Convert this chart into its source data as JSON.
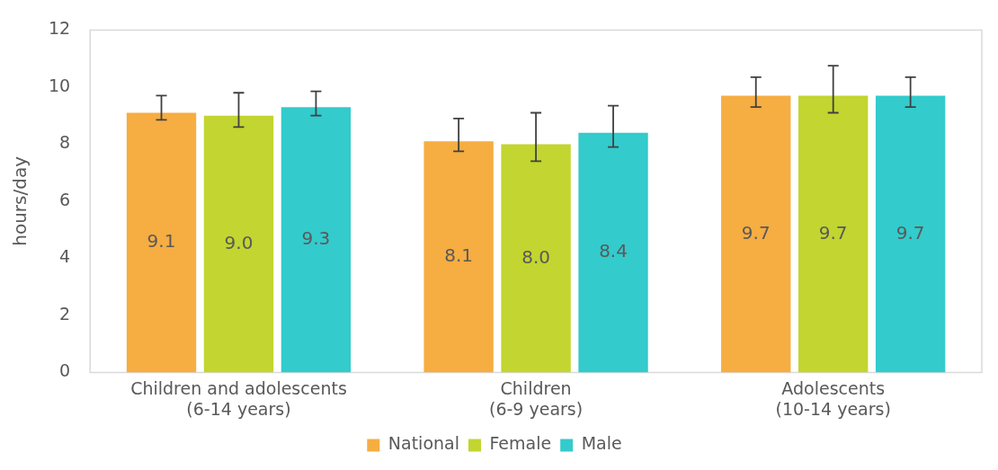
{
  "chart_data": {
    "type": "bar",
    "ylabel": "hours/day",
    "categories": [
      "Children and adolescents\n(6-14 years)",
      "Children\n(6-9 years)",
      "Adolescents\n(10-14 years)"
    ],
    "series": [
      {
        "name": "National",
        "color": "#f6ad42",
        "values": [
          9.1,
          8.1,
          9.7
        ],
        "value_labels": [
          "9.1",
          "8.1",
          "9.7"
        ],
        "errors": [
          [
            8.85,
            9.7
          ],
          [
            7.75,
            8.9
          ],
          [
            9.3,
            10.35
          ]
        ]
      },
      {
        "name": "Female",
        "color": "#c2d530",
        "values": [
          9.0,
          8.0,
          9.7
        ],
        "value_labels": [
          "9.0",
          "8.0",
          "9.7"
        ],
        "errors": [
          [
            8.6,
            9.8
          ],
          [
            7.4,
            9.1
          ],
          [
            9.1,
            10.75
          ]
        ]
      },
      {
        "name": "Male",
        "color": "#33cbcc",
        "values": [
          9.3,
          8.4,
          9.7
        ],
        "value_labels": [
          "9.3",
          "8.4",
          "9.7"
        ],
        "errors": [
          [
            9.0,
            9.85
          ],
          [
            7.9,
            9.35
          ],
          [
            9.3,
            10.35
          ]
        ]
      }
    ],
    "ylim": [
      0,
      12
    ],
    "yticks": [
      0,
      2,
      4,
      6,
      8,
      10,
      12
    ],
    "grid": false,
    "legend": "bottom"
  }
}
